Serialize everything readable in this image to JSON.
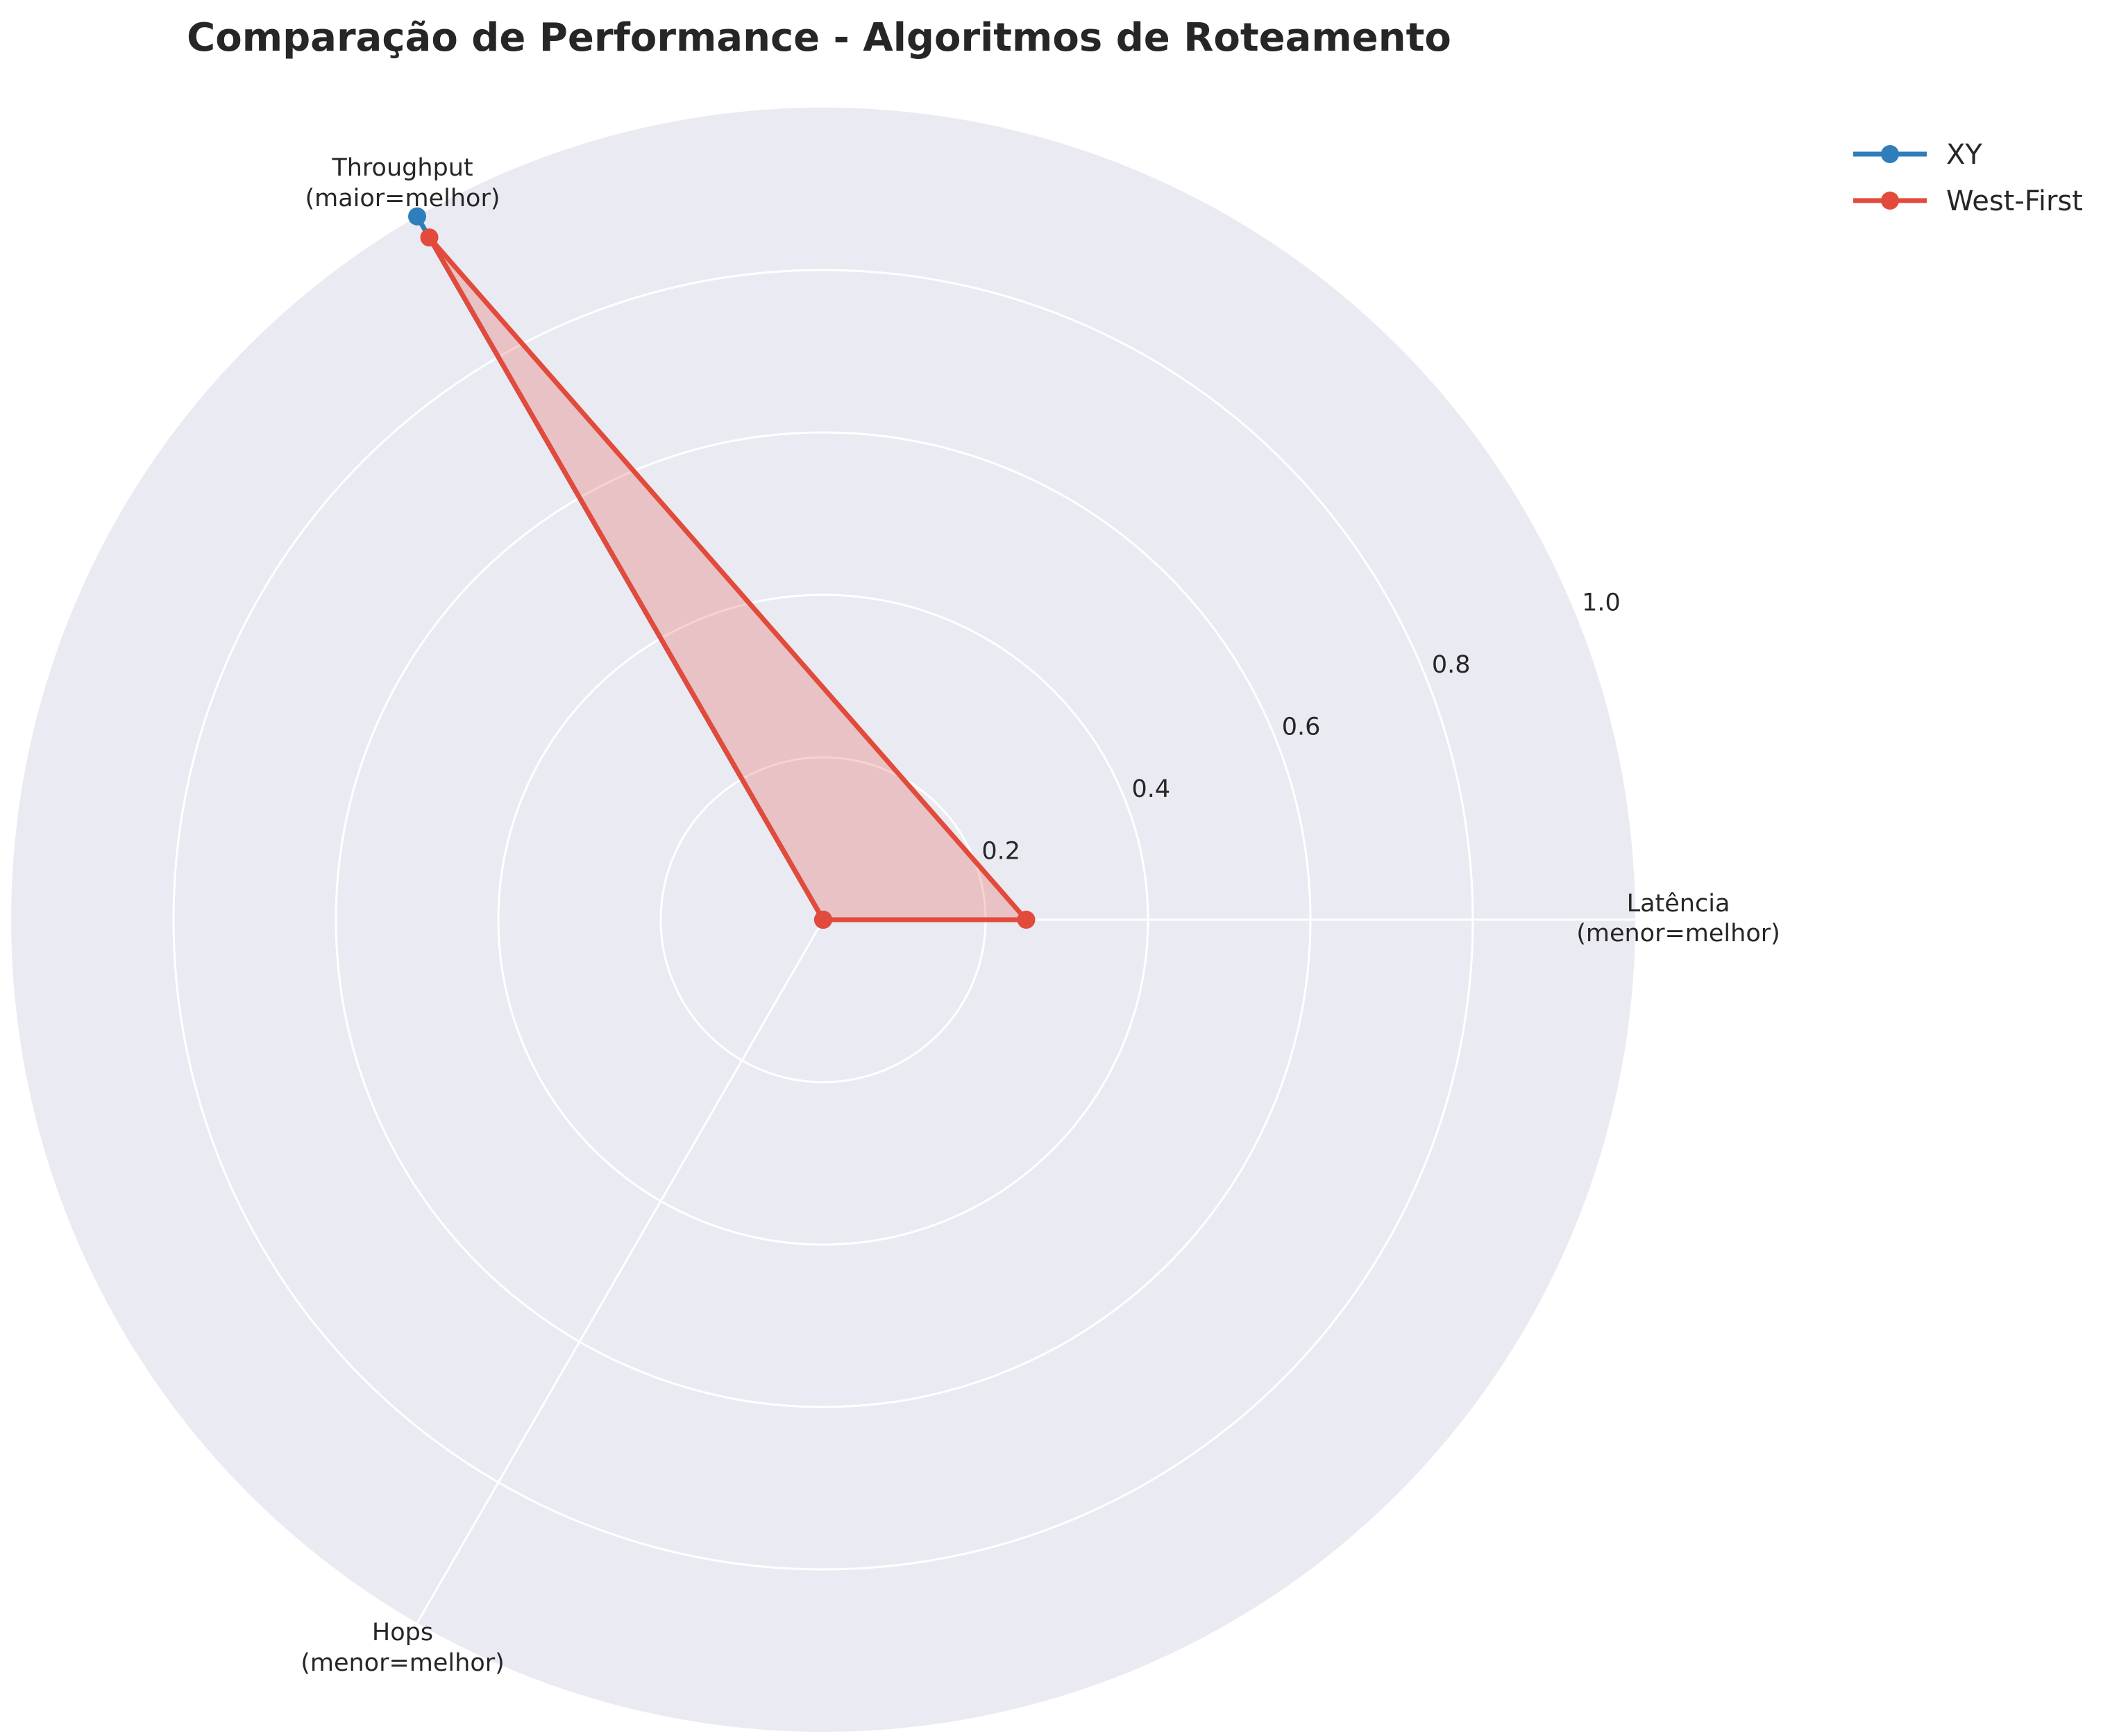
{
  "chart_data": {
    "type": "radar",
    "title": "Comparação de Performance - Algoritmos de Roteamento",
    "categories": [
      {
        "line1": "Latência",
        "line2": "(menor=melhor)"
      },
      {
        "line1": "Throughput",
        "line2": "(maior=melhor)"
      },
      {
        "line1": "Hops",
        "line2": "(menor=melhor)"
      }
    ],
    "rlim": [
      0,
      1.0
    ],
    "rticks": [
      "0.2",
      "0.4",
      "0.6",
      "0.8",
      "1.0"
    ],
    "rtick_values": [
      0.2,
      0.4,
      0.6,
      0.8,
      1.0
    ],
    "series": [
      {
        "name": "XY",
        "color": "#2e7ebc",
        "values": [
          0.0,
          1.0,
          0.0
        ],
        "fill": false
      },
      {
        "name": "West-First",
        "color": "#e24a3b",
        "values": [
          0.25,
          0.97,
          0.0
        ],
        "fill": true
      }
    ],
    "legend_position": "top-right",
    "grid": true,
    "background": "#eaeaf2"
  }
}
